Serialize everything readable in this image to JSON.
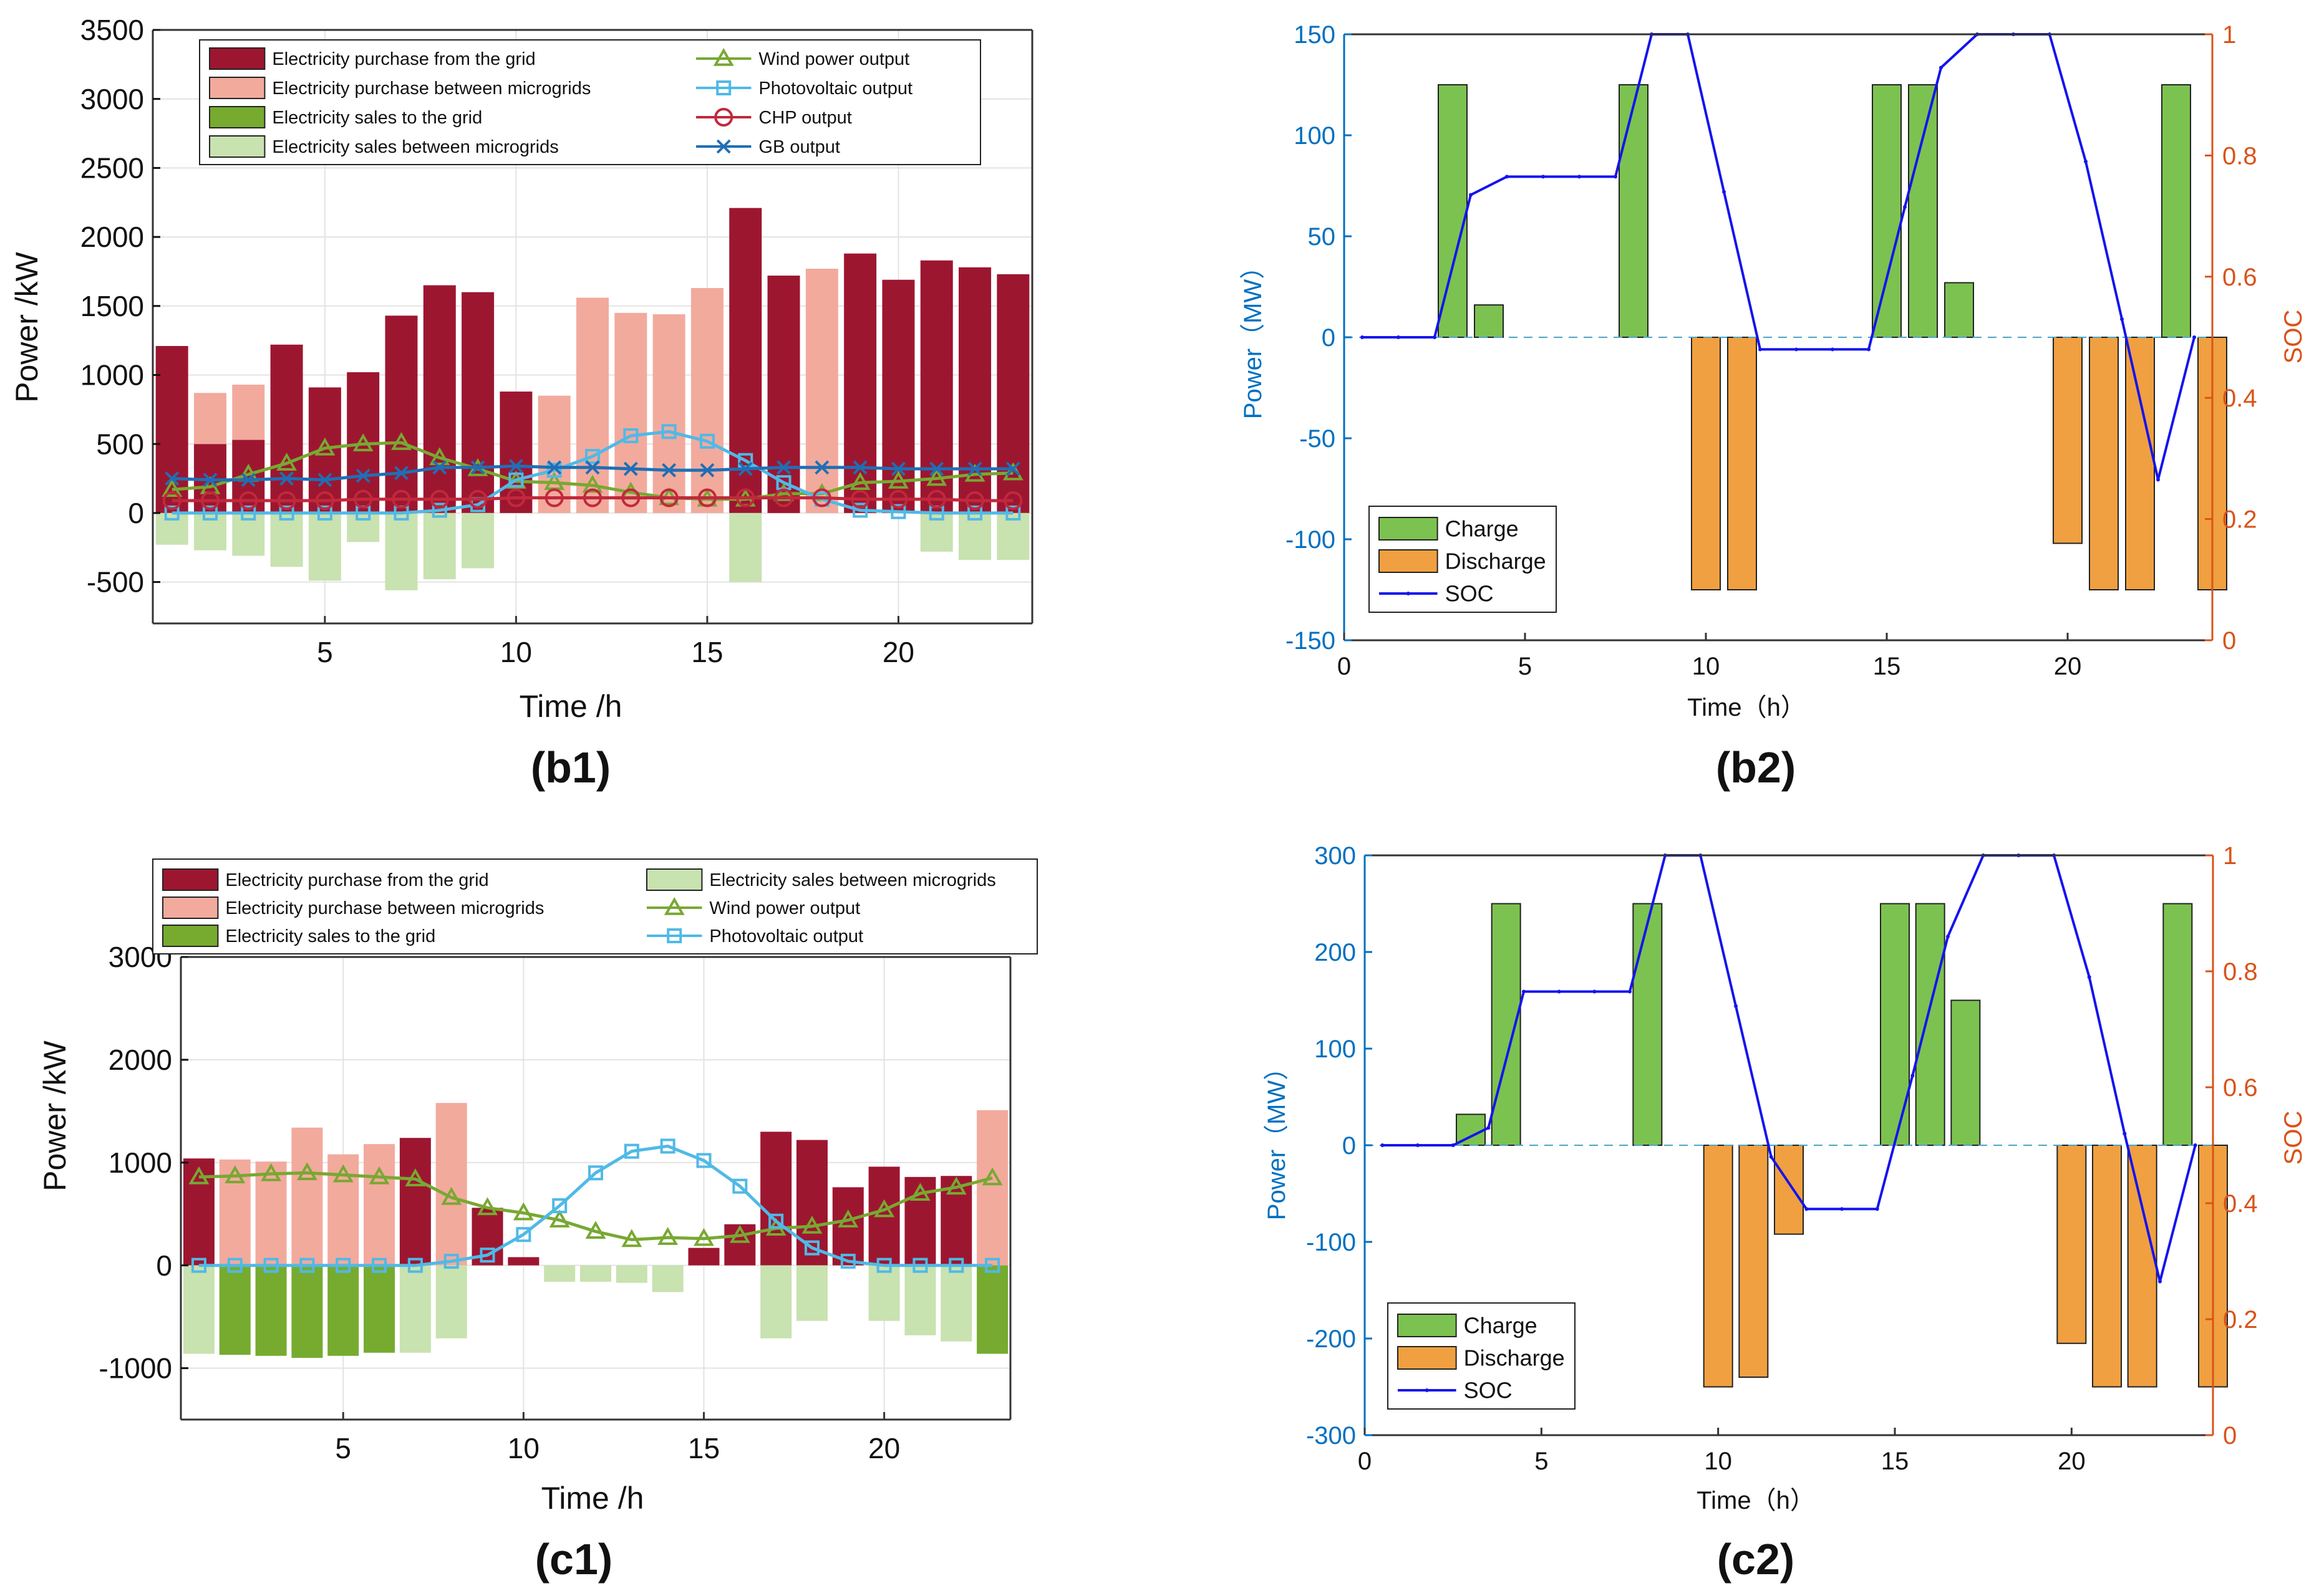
{
  "panel_labels": [
    "(b1)",
    "(b2)",
    "(c1)",
    "(c2)"
  ],
  "colors": {
    "purchase_grid": "#9d1630",
    "purchase_mg": "#f2aa9d",
    "sales_grid": "#76ab2f",
    "sales_mg": "#c8e2b0",
    "wind": "#78a832",
    "pv": "#50b9e6",
    "chp": "#c2283c",
    "gb": "#1f6fb5",
    "charge": "#7cc250",
    "discharge": "#f0a040",
    "soc": "#1414ee",
    "left_axis": "#0070c0",
    "right_axis": "#d95319",
    "grid": "#e3e3e3"
  },
  "chart_data": [
    {
      "id": "b1",
      "type": "bar",
      "xlabel": "Time /h",
      "ylabel": "Power /kW",
      "xlim": [
        0.5,
        23.5
      ],
      "ylim": [
        -800,
        3500
      ],
      "xticks": [
        5,
        10,
        15,
        20
      ],
      "yticks": [
        -500,
        0,
        500,
        1000,
        1500,
        2000,
        2500,
        3000,
        3500
      ],
      "grid": true,
      "legend_position": "top",
      "x": [
        1,
        2,
        3,
        4,
        5,
        6,
        7,
        8,
        9,
        10,
        11,
        12,
        13,
        14,
        15,
        16,
        17,
        18,
        19,
        20,
        21,
        22,
        23
      ],
      "bar_series": [
        {
          "name": "Electricity purchase from the grid",
          "color_key": "purchase_grid",
          "stack": "pos",
          "values": [
            1210,
            500,
            530,
            1220,
            910,
            1020,
            1430,
            1650,
            1600,
            880,
            0,
            0,
            0,
            0,
            0,
            2210,
            1720,
            0,
            1880,
            1690,
            1830,
            1780,
            1730
          ]
        },
        {
          "name": "Electricity purchase between microgrids",
          "color_key": "purchase_mg",
          "stack": "pos",
          "values": [
            0,
            370,
            400,
            0,
            0,
            0,
            0,
            0,
            0,
            0,
            850,
            1560,
            1450,
            1440,
            1630,
            0,
            0,
            1770,
            0,
            0,
            0,
            0,
            0
          ]
        },
        {
          "name": "Electricity sales to the grid",
          "color_key": "sales_grid",
          "stack": "neg",
          "values": [
            0,
            0,
            0,
            0,
            0,
            0,
            0,
            0,
            0,
            0,
            0,
            0,
            0,
            0,
            0,
            0,
            0,
            0,
            0,
            0,
            0,
            0,
            0
          ]
        },
        {
          "name": "Electricity sales between microgrids",
          "color_key": "sales_mg",
          "stack": "neg",
          "values": [
            -230,
            -270,
            -310,
            -390,
            -490,
            -210,
            -560,
            -480,
            -400,
            0,
            0,
            0,
            0,
            0,
            0,
            -500,
            0,
            0,
            0,
            0,
            -280,
            -340,
            -340
          ]
        }
      ],
      "line_series": [
        {
          "name": "Wind power output",
          "color_key": "wind",
          "marker": "triangle",
          "values": [
            170,
            190,
            280,
            360,
            470,
            500,
            510,
            400,
            320,
            230,
            220,
            200,
            150,
            110,
            100,
            100,
            140,
            140,
            220,
            230,
            250,
            280,
            290
          ]
        },
        {
          "name": "Photovoltaic output",
          "color_key": "pv",
          "marker": "square",
          "values": [
            0,
            0,
            0,
            0,
            0,
            0,
            0,
            20,
            60,
            240,
            310,
            410,
            560,
            590,
            520,
            380,
            220,
            100,
            20,
            10,
            0,
            0,
            0
          ]
        },
        {
          "name": "CHP output",
          "color_key": "chp",
          "marker": "circle",
          "values": [
            90,
            90,
            90,
            90,
            90,
            100,
            100,
            100,
            100,
            110,
            110,
            110,
            110,
            110,
            110,
            110,
            110,
            110,
            100,
            100,
            100,
            90,
            90
          ]
        },
        {
          "name": "GB output",
          "color_key": "gb",
          "marker": "cross",
          "values": [
            250,
            240,
            240,
            250,
            240,
            270,
            290,
            330,
            330,
            340,
            330,
            330,
            320,
            310,
            310,
            320,
            330,
            330,
            330,
            320,
            320,
            320,
            320
          ]
        }
      ]
    },
    {
      "id": "b2",
      "type": "bar",
      "xlabel": "Time（h）",
      "ylabel": "Power（MW）",
      "y2label": "SOC",
      "xlim": [
        0,
        24
      ],
      "ylim": [
        -150,
        150
      ],
      "y2lim": [
        0,
        1
      ],
      "xticks": [
        0,
        5,
        10,
        15,
        20
      ],
      "yticks": [
        -150,
        -100,
        -50,
        0,
        50,
        100,
        150
      ],
      "y2ticks": [
        0,
        0.2,
        0.4,
        0.6,
        0.8,
        1
      ],
      "grid": false,
      "legend_position": "bottom-left",
      "x": [
        1,
        2,
        3,
        4,
        5,
        6,
        7,
        8,
        9,
        10,
        11,
        12,
        13,
        14,
        15,
        16,
        17,
        18,
        19,
        20,
        21,
        22,
        23,
        24
      ],
      "bar_series": [
        {
          "name": "Charge",
          "color_key": "charge",
          "values": [
            0,
            0,
            125,
            16,
            0,
            0,
            0,
            125,
            0,
            0,
            0,
            0,
            0,
            0,
            125,
            125,
            27,
            0,
            0,
            0,
            0,
            0,
            125,
            0
          ]
        },
        {
          "name": "Discharge",
          "color_key": "discharge",
          "values": [
            0,
            0,
            0,
            0,
            0,
            0,
            0,
            0,
            0,
            -125,
            -125,
            0,
            0,
            0,
            0,
            0,
            0,
            0,
            0,
            -102,
            -125,
            -125,
            0,
            -125
          ]
        }
      ],
      "line_series": [
        {
          "name": "SOC",
          "axis": "right",
          "color_key": "soc",
          "x": [
            0.5,
            1.5,
            2.5,
            3.5,
            4.5,
            5.5,
            6.5,
            7.5,
            8.5,
            9.5,
            10.5,
            11.5,
            12.5,
            13.5,
            14.5,
            15.5,
            16.5,
            17.5,
            18.5,
            19.5,
            20.5,
            21.5,
            22.5,
            23.5
          ],
          "values": [
            0.5,
            0.5,
            0.5,
            0.735,
            0.765,
            0.765,
            0.765,
            0.765,
            1.0,
            1.0,
            0.74,
            0.48,
            0.48,
            0.48,
            0.48,
            0.715,
            0.945,
            1.0,
            1.0,
            1.0,
            0.79,
            0.53,
            0.265,
            0.5
          ]
        }
      ]
    },
    {
      "id": "c1",
      "type": "bar",
      "xlabel": "Time /h",
      "ylabel": "Power /kW",
      "xlim": [
        0.5,
        23.5
      ],
      "ylim": [
        -1500,
        3000
      ],
      "xticks": [
        5,
        10,
        15,
        20
      ],
      "yticks": [
        -1000,
        0,
        1000,
        2000,
        3000
      ],
      "grid": true,
      "legend_position": "top",
      "x": [
        1,
        2,
        3,
        4,
        5,
        6,
        7,
        8,
        9,
        10,
        11,
        12,
        13,
        14,
        15,
        16,
        17,
        18,
        19,
        20,
        21,
        22,
        23
      ],
      "bar_series": [
        {
          "name": "Electricity purchase from the grid",
          "color_key": "purchase_grid",
          "stack": "pos",
          "values": [
            1040,
            0,
            0,
            0,
            0,
            0,
            1240,
            0,
            560,
            80,
            0,
            0,
            0,
            0,
            170,
            400,
            1300,
            1220,
            760,
            960,
            860,
            870,
            0
          ]
        },
        {
          "name": "Electricity purchase between microgrids",
          "color_key": "purchase_mg",
          "stack": "pos",
          "values": [
            0,
            1030,
            1010,
            1340,
            1080,
            1180,
            0,
            1580,
            0,
            0,
            0,
            0,
            0,
            0,
            0,
            0,
            0,
            0,
            0,
            0,
            0,
            0,
            1510
          ]
        },
        {
          "name": "Electricity sales to the grid",
          "color_key": "sales_grid",
          "stack": "neg",
          "values": [
            0,
            -870,
            -880,
            -900,
            -880,
            -850,
            0,
            0,
            0,
            0,
            0,
            0,
            0,
            0,
            0,
            0,
            0,
            0,
            0,
            0,
            0,
            0,
            -860
          ]
        },
        {
          "name": "Electricity sales between microgrids",
          "color_key": "sales_mg",
          "stack": "neg",
          "values": [
            -860,
            0,
            0,
            0,
            0,
            0,
            -850,
            -710,
            0,
            0,
            -160,
            -160,
            -170,
            -260,
            0,
            0,
            -710,
            -540,
            0,
            -540,
            -680,
            -740,
            0
          ]
        }
      ],
      "line_series": [
        {
          "name": "Wind power output",
          "color_key": "wind",
          "marker": "triangle",
          "values": [
            860,
            870,
            890,
            900,
            880,
            860,
            840,
            660,
            560,
            510,
            440,
            330,
            250,
            270,
            260,
            290,
            360,
            380,
            440,
            540,
            700,
            760,
            850
          ]
        },
        {
          "name": "Photovoltaic output",
          "color_key": "pv",
          "marker": "square",
          "values": [
            0,
            0,
            0,
            0,
            0,
            0,
            0,
            40,
            100,
            300,
            580,
            900,
            1110,
            1160,
            1020,
            770,
            430,
            170,
            40,
            0,
            0,
            0,
            0
          ]
        }
      ]
    },
    {
      "id": "c2",
      "type": "bar",
      "xlabel": "Time（h）",
      "ylabel": "Power（MW）",
      "y2label": "SOC",
      "xlim": [
        0,
        24
      ],
      "ylim": [
        -300,
        300
      ],
      "y2lim": [
        0,
        1
      ],
      "xticks": [
        0,
        5,
        10,
        15,
        20
      ],
      "yticks": [
        -300,
        -200,
        -100,
        0,
        100,
        200,
        300
      ],
      "y2ticks": [
        0,
        0.2,
        0.4,
        0.6,
        0.8,
        1
      ],
      "grid": false,
      "legend_position": "bottom-left",
      "x": [
        1,
        2,
        3,
        4,
        5,
        6,
        7,
        8,
        9,
        10,
        11,
        12,
        13,
        14,
        15,
        16,
        17,
        18,
        19,
        20,
        21,
        22,
        23,
        24
      ],
      "bar_series": [
        {
          "name": "Charge",
          "color_key": "charge",
          "values": [
            0,
            0,
            32,
            250,
            0,
            0,
            0,
            250,
            0,
            0,
            0,
            0,
            0,
            0,
            250,
            250,
            150,
            0,
            0,
            0,
            0,
            0,
            250,
            0
          ]
        },
        {
          "name": "Discharge",
          "color_key": "discharge",
          "values": [
            0,
            0,
            0,
            0,
            0,
            0,
            0,
            0,
            0,
            -250,
            -240,
            -92,
            0,
            0,
            0,
            0,
            0,
            0,
            0,
            -205,
            -250,
            -250,
            0,
            -250
          ]
        }
      ],
      "line_series": [
        {
          "name": "SOC",
          "axis": "right",
          "color_key": "soc",
          "x": [
            0.5,
            1.5,
            2.5,
            3.5,
            4.5,
            5.5,
            6.5,
            7.5,
            8.5,
            9.5,
            10.5,
            11.5,
            12.5,
            13.5,
            14.5,
            15.5,
            16.5,
            17.5,
            18.5,
            19.5,
            20.5,
            21.5,
            22.5,
            23.5
          ],
          "values": [
            0.5,
            0.5,
            0.5,
            0.53,
            0.765,
            0.765,
            0.765,
            0.765,
            1.0,
            1.0,
            0.74,
            0.48,
            0.39,
            0.39,
            0.39,
            0.62,
            0.86,
            1.0,
            1.0,
            1.0,
            0.79,
            0.52,
            0.265,
            0.5
          ]
        }
      ]
    }
  ]
}
